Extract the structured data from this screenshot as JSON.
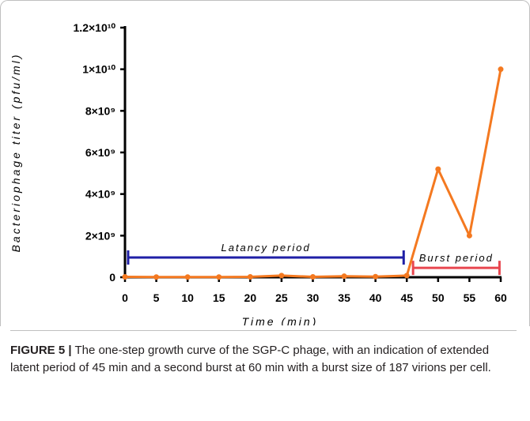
{
  "chart_data": {
    "type": "line",
    "xlabel": "Time (min)",
    "ylabel": "Bacteriophage titer (pfu/ml)",
    "xlim": [
      0,
      60
    ],
    "ylim": [
      0,
      12000000000
    ],
    "x_ticks": [
      0,
      5,
      10,
      15,
      20,
      25,
      30,
      35,
      40,
      45,
      50,
      55,
      60
    ],
    "y_ticks": [
      {
        "value": 0,
        "label": "0"
      },
      {
        "value": 2000000000,
        "label": "2×10⁹"
      },
      {
        "value": 4000000000,
        "label": "4×10⁹"
      },
      {
        "value": 6000000000,
        "label": "6×10⁹"
      },
      {
        "value": 8000000000,
        "label": "8×10⁹"
      },
      {
        "value": 10000000000,
        "label": "1×10¹⁰"
      },
      {
        "value": 12000000000,
        "label": "1.2×10¹⁰"
      }
    ],
    "series": [
      {
        "color": "#f47920",
        "x": [
          0,
          5,
          10,
          15,
          20,
          25,
          30,
          35,
          40,
          45,
          50,
          55,
          60
        ],
        "y": [
          20000000,
          10000000,
          10000000,
          10000000,
          20000000,
          80000000,
          20000000,
          50000000,
          30000000,
          80000000,
          5200000000,
          2000000000,
          10000000000
        ]
      }
    ],
    "annotations": [
      {
        "label": "Latancy period",
        "x_start": 0.5,
        "x_end": 44.5,
        "y": 950000000,
        "color": "#1f1fa6"
      },
      {
        "label": "Burst period",
        "x_start": 46,
        "x_end": 59.8,
        "y": 450000000,
        "color": "#e8464f"
      }
    ]
  },
  "caption": {
    "label": "FIGURE 5 |",
    "text": " The one-step growth curve of the SGP-C phage, with an indication of extended latent period of 45 min and a second burst at 60 min with a burst size of 187 virions per cell."
  }
}
